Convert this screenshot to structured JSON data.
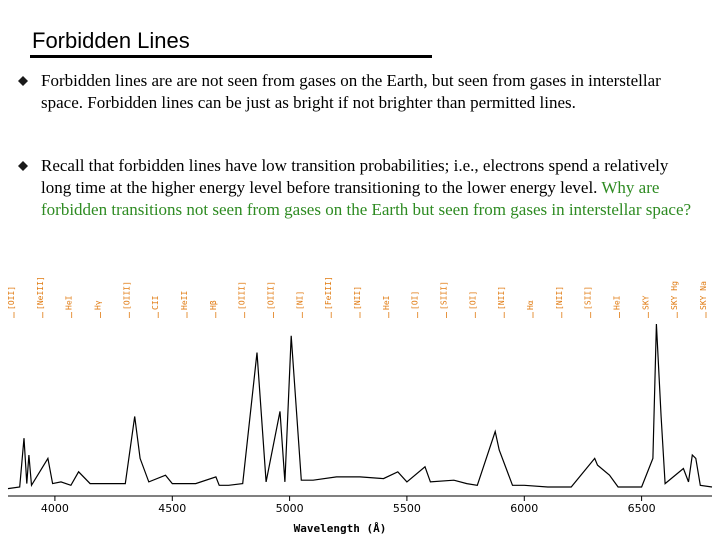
{
  "slide": {
    "title": "Forbidden Lines",
    "bullets": [
      {
        "text": "Forbidden lines are are not seen from gases on the Earth, but seen from gases in interstellar space.  Forbidden lines can be just as bright if not brighter than permitted lines.",
        "highlight": ""
      },
      {
        "text": "Recall that forbidden lines have low transition probabilities; i.e., electrons spend a relatively long time at the higher energy level before transitioning to the lower energy level. ",
        "highlight": "Why are forbidden transitions not seen from gases on the Earth but seen from gases in interstellar space?"
      }
    ],
    "colors": {
      "bullet": "#1a1a1a",
      "highlight": "#2e8b22",
      "line_label": "#e07a10",
      "spectrum": "#000000"
    }
  },
  "chart_data": {
    "type": "line",
    "xlabel": "Wavelength (Å)",
    "ylabel": "",
    "xlim": [
      3800,
      6800
    ],
    "x_ticks": [
      4000,
      4500,
      5000,
      5500,
      6000,
      6500
    ],
    "x_tick_labels": [
      "4000",
      "4500",
      "5000",
      "5500",
      "6000",
      "6500"
    ],
    "grid": false,
    "line_labels_top": [
      "[OII]",
      "[NeIII]",
      "HeI",
      "Hγ",
      "[OIII]",
      "CII",
      "HeII",
      "Hβ",
      "[OIII]",
      "[OIII]",
      "[NI]",
      "[FeIII]",
      "[NII]",
      "HeI",
      "[OI]",
      "[SIII]",
      "[OI]",
      "[NII]",
      "Hα",
      "[NII]",
      "[SII]",
      "HeI",
      "SKY",
      "SKY Hg",
      "SKY Na"
    ],
    "series": [
      {
        "values": [
          [
            3800,
            0.02
          ],
          [
            3850,
            0.03
          ],
          [
            3868,
            0.32
          ],
          [
            3880,
            0.05
          ],
          [
            3889,
            0.22
          ],
          [
            3900,
            0.04
          ],
          [
            3970,
            0.2
          ],
          [
            3990,
            0.05
          ],
          [
            4026,
            0.06
          ],
          [
            4068,
            0.04
          ],
          [
            4101,
            0.12
          ],
          [
            4150,
            0.05
          ],
          [
            4200,
            0.05
          ],
          [
            4267,
            0.05
          ],
          [
            4300,
            0.05
          ],
          [
            4340,
            0.45
          ],
          [
            4363,
            0.2
          ],
          [
            4400,
            0.06
          ],
          [
            4471,
            0.1
          ],
          [
            4500,
            0.05
          ],
          [
            4600,
            0.05
          ],
          [
            4686,
            0.09
          ],
          [
            4700,
            0.04
          ],
          [
            4740,
            0.04
          ],
          [
            4800,
            0.05
          ],
          [
            4861,
            0.83
          ],
          [
            4900,
            0.06
          ],
          [
            4959,
            0.48
          ],
          [
            4980,
            0.06
          ],
          [
            5007,
            0.93
          ],
          [
            5050,
            0.07
          ],
          [
            5100,
            0.07
          ],
          [
            5200,
            0.09
          ],
          [
            5300,
            0.09
          ],
          [
            5400,
            0.08
          ],
          [
            5461,
            0.12
          ],
          [
            5500,
            0.06
          ],
          [
            5577,
            0.15
          ],
          [
            5600,
            0.06
          ],
          [
            5700,
            0.07
          ],
          [
            5755,
            0.05
          ],
          [
            5800,
            0.04
          ],
          [
            5876,
            0.36
          ],
          [
            5893,
            0.25
          ],
          [
            5950,
            0.04
          ],
          [
            6000,
            0.04
          ],
          [
            6100,
            0.03
          ],
          [
            6200,
            0.03
          ],
          [
            6300,
            0.2
          ],
          [
            6312,
            0.16
          ],
          [
            6363,
            0.1
          ],
          [
            6400,
            0.03
          ],
          [
            6500,
            0.03
          ],
          [
            6548,
            0.2
          ],
          [
            6563,
            1.0
          ],
          [
            6583,
            0.45
          ],
          [
            6600,
            0.05
          ],
          [
            6678,
            0.14
          ],
          [
            6700,
            0.06
          ],
          [
            6716,
            0.22
          ],
          [
            6731,
            0.2
          ],
          [
            6750,
            0.04
          ],
          [
            6800,
            0.03
          ]
        ]
      }
    ]
  }
}
